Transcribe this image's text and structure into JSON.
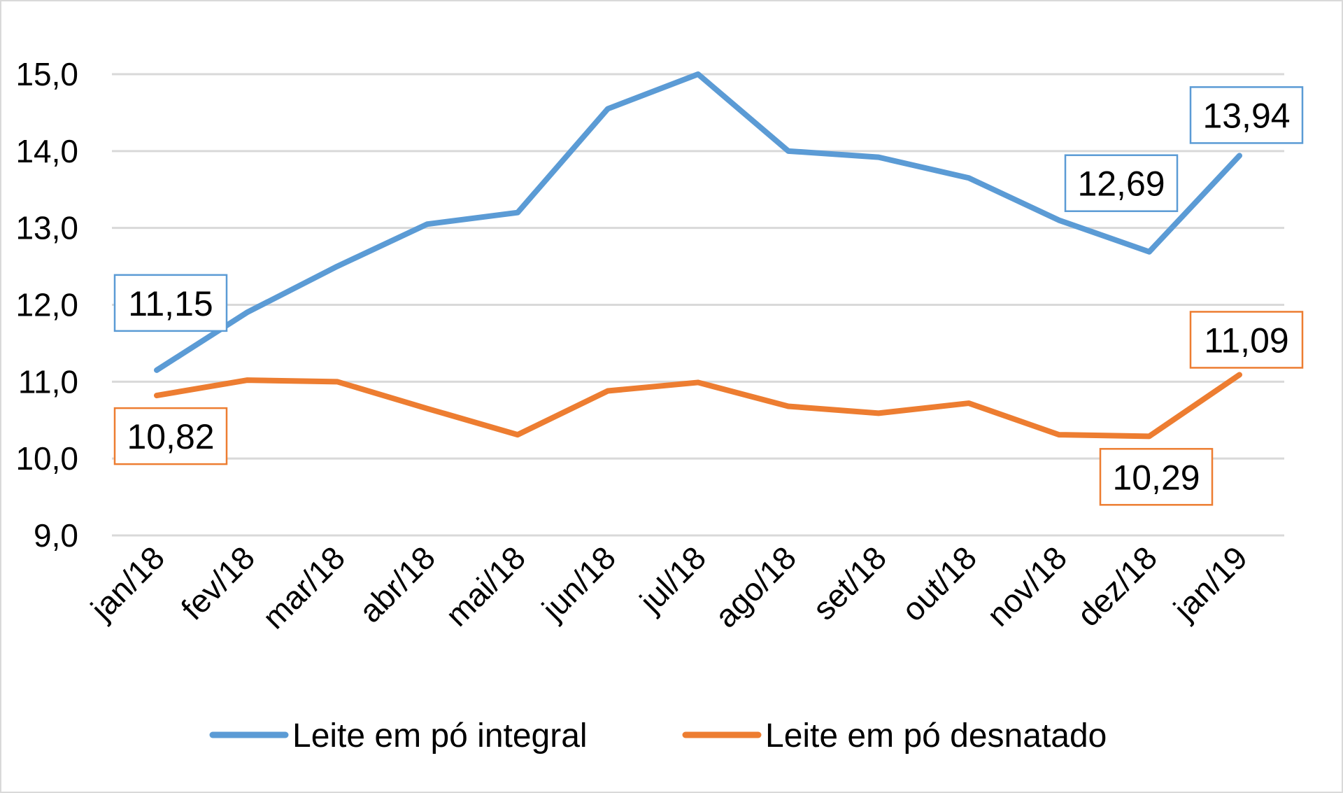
{
  "chart_data": {
    "type": "line",
    "categories": [
      "jan/18",
      "fev/18",
      "mar/18",
      "abr/18",
      "mai/18",
      "jun/18",
      "jul/18",
      "ago/18",
      "set/18",
      "out/18",
      "nov/18",
      "dez/18",
      "jan/19"
    ],
    "series": [
      {
        "name": "Leite em pó integral",
        "color": "#5b9bd5",
        "values": [
          11.15,
          11.9,
          12.5,
          13.05,
          13.2,
          14.55,
          15.0,
          14.0,
          13.92,
          13.65,
          13.1,
          12.69,
          13.94
        ]
      },
      {
        "name": "Leite em pó desnatado",
        "color": "#ed7d31",
        "values": [
          10.82,
          11.02,
          11.0,
          10.65,
          10.31,
          10.88,
          10.99,
          10.68,
          10.59,
          10.72,
          10.31,
          10.29,
          11.09
        ]
      }
    ],
    "y_ticks": [
      "15,0",
      "14,0",
      "13,0",
      "12,0",
      "11,0",
      "10,0",
      "9,0"
    ],
    "ylim": [
      9,
      15
    ],
    "grid": true,
    "legend_position": "bottom",
    "data_labels": [
      {
        "series": 0,
        "index": 0,
        "text": "11,15",
        "placement": "above"
      },
      {
        "series": 0,
        "index": 11,
        "text": "12,69",
        "placement": "above"
      },
      {
        "series": 0,
        "index": 12,
        "text": "13,94",
        "placement": "above"
      },
      {
        "series": 1,
        "index": 0,
        "text": "10,82",
        "placement": "below"
      },
      {
        "series": 1,
        "index": 11,
        "text": "10,29",
        "placement": "below"
      },
      {
        "series": 1,
        "index": 12,
        "text": "11,09",
        "placement": "above"
      }
    ]
  }
}
